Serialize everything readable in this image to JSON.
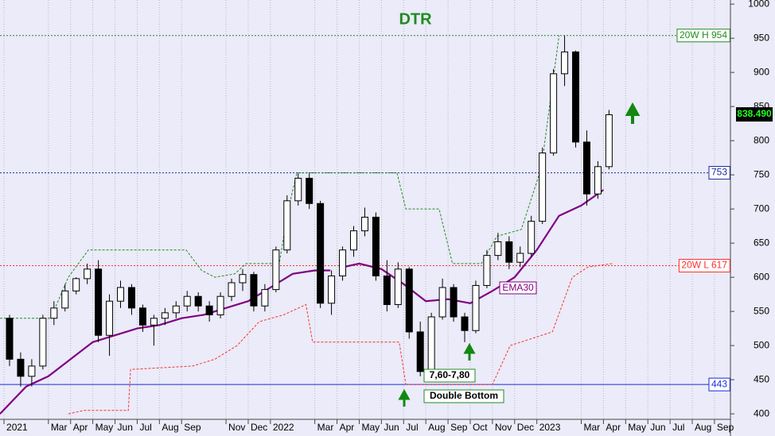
{
  "chart_data": {
    "type": "candlestick",
    "title": "DTR",
    "xlim": [
      -0.18,
      32.72
    ],
    "xticks": [
      {
        "value": 0,
        "label": "2021"
      },
      {
        "value": 2,
        "label": "Mar"
      },
      {
        "value": 3,
        "label": "Apr"
      },
      {
        "value": 4,
        "label": "May"
      },
      {
        "value": 5,
        "label": "Jun"
      },
      {
        "value": 6,
        "label": "Jul"
      },
      {
        "value": 7,
        "label": "Aug"
      },
      {
        "value": 8,
        "label": "Sep"
      },
      {
        "value": 10,
        "label": "Nov"
      },
      {
        "value": 11,
        "label": "Dec"
      },
      {
        "value": 12,
        "label": "2022"
      },
      {
        "value": 14,
        "label": "Mar"
      },
      {
        "value": 15,
        "label": "Apr"
      },
      {
        "value": 16,
        "label": "May"
      },
      {
        "value": 17,
        "label": "Jun"
      },
      {
        "value": 18,
        "label": "Jul"
      },
      {
        "value": 19,
        "label": "Aug"
      },
      {
        "value": 20,
        "label": "Sep"
      },
      {
        "value": 21,
        "label": "Oct"
      },
      {
        "value": 22,
        "label": "Nov"
      },
      {
        "value": 23,
        "label": "Dec"
      },
      {
        "value": 24,
        "label": "2023"
      },
      {
        "value": 26,
        "label": "Mar"
      },
      {
        "value": 27,
        "label": "Apr"
      },
      {
        "value": 28,
        "label": "May"
      },
      {
        "value": 29,
        "label": "Jun"
      },
      {
        "value": 30,
        "label": "Jul"
      },
      {
        "value": 31,
        "label": "Aug"
      },
      {
        "value": 32,
        "label": "Sep"
      }
    ],
    "ylim": [
      392,
      1006
    ],
    "yticks": [
      400,
      450,
      500,
      550,
      600,
      650,
      700,
      750,
      800,
      850,
      900,
      950,
      1000
    ],
    "grid": true,
    "x": [
      0.25,
      0.75,
      1.25,
      1.75,
      2.25,
      2.75,
      3.25,
      3.75,
      4.25,
      4.75,
      5.25,
      5.75,
      6.25,
      6.75,
      7.25,
      7.75,
      8.25,
      8.75,
      9.25,
      9.75,
      10.25,
      10.75,
      11.25,
      11.75,
      12.25,
      12.75,
      13.25,
      13.75,
      14.25,
      14.75,
      15.25,
      15.75,
      16.25,
      16.75,
      17.25,
      17.75,
      18.25,
      18.75,
      19.25,
      19.75,
      20.25,
      20.75,
      21.25,
      21.75,
      22.25,
      22.75,
      23.25,
      23.75,
      24.25,
      24.75,
      25.25,
      25.75,
      26.25,
      26.75,
      27.25
    ],
    "open": [
      540,
      480,
      455,
      470,
      540,
      555,
      580,
      598,
      612,
      515,
      565,
      585,
      555,
      530,
      540,
      548,
      558,
      572,
      558,
      545,
      572,
      592,
      604,
      558,
      582,
      640,
      712,
      745,
      708,
      562,
      602,
      640,
      668,
      688,
      602,
      560,
      612,
      520,
      462,
      542,
      585,
      542,
      522,
      588,
      632,
      652,
      622,
      635,
      682,
      782,
      898,
      930,
      798,
      722,
      762
    ],
    "high": [
      545,
      490,
      480,
      545,
      565,
      590,
      600,
      620,
      625,
      575,
      595,
      590,
      560,
      545,
      555,
      565,
      580,
      578,
      565,
      578,
      598,
      612,
      608,
      590,
      645,
      720,
      752,
      752,
      712,
      610,
      645,
      675,
      702,
      695,
      625,
      622,
      615,
      535,
      548,
      598,
      590,
      548,
      595,
      640,
      665,
      660,
      645,
      690,
      790,
      905,
      954,
      932,
      815,
      770,
      845
    ],
    "low": [
      470,
      440,
      440,
      465,
      530,
      550,
      575,
      590,
      505,
      485,
      555,
      545,
      520,
      500,
      530,
      540,
      550,
      550,
      535,
      540,
      565,
      580,
      550,
      550,
      578,
      635,
      705,
      700,
      555,
      545,
      595,
      630,
      660,
      595,
      550,
      555,
      510,
      455,
      458,
      538,
      535,
      505,
      518,
      584,
      625,
      612,
      615,
      630,
      678,
      778,
      880,
      790,
      705,
      715,
      758
    ],
    "close": [
      480,
      455,
      470,
      540,
      555,
      580,
      598,
      612,
      515,
      565,
      585,
      555,
      530,
      540,
      548,
      558,
      572,
      558,
      545,
      572,
      592,
      604,
      558,
      582,
      640,
      712,
      745,
      708,
      562,
      602,
      640,
      668,
      688,
      602,
      560,
      612,
      520,
      462,
      542,
      585,
      542,
      522,
      588,
      632,
      652,
      622,
      635,
      682,
      782,
      898,
      930,
      798,
      722,
      762,
      838
    ],
    "series": [
      {
        "name": "EMA30",
        "color": "#800080",
        "x": [
          -0.18,
          1,
          2,
          3,
          4,
          5,
          6,
          7,
          8,
          9,
          10,
          11,
          12,
          13,
          14,
          14.7,
          15,
          15.3,
          16,
          17,
          18,
          19,
          20,
          21,
          22,
          23,
          24,
          25,
          26,
          27
        ],
        "values": [
          400,
          440,
          455,
          480,
          505,
          515,
          525,
          530,
          540,
          545,
          555,
          565,
          585,
          605,
          610,
          610,
          null,
          615,
          620,
          612,
          590,
          565,
          568,
          562,
          580,
          600,
          640,
          690,
          705,
          728
        ]
      },
      {
        "name": "20W H",
        "color": "#228b22",
        "x": [
          -0.18,
          2.1,
          2.9,
          3.8,
          8.2,
          8.9,
          9.5,
          10.4,
          10.9,
          12.4,
          12.8,
          13.2,
          17.7,
          18.1,
          19.6,
          20.2,
          21.5,
          22.2,
          23.3,
          24.2,
          25.0
        ],
        "values": [
          540,
          540,
          600,
          640,
          640,
          610,
          600,
          605,
          620,
          620,
          700,
          753,
          753,
          700,
          700,
          620,
          620,
          660,
          670,
          760,
          954
        ]
      },
      {
        "name": "20W L",
        "color": "#ff3030",
        "x": [
          2.9,
          3.6,
          5.6,
          5.7,
          8.5,
          9.5,
          10.5,
          11.5,
          12.6,
          13.6,
          13.9,
          16.1,
          17.8,
          18.1,
          22.0,
          22.8,
          24.7,
          25.6,
          26.3,
          27.4
        ],
        "values": [
          400,
          405,
          405,
          465,
          470,
          480,
          500,
          535,
          545,
          560,
          505,
          505,
          505,
          443,
          443,
          500,
          520,
          600,
          615,
          620
        ]
      }
    ],
    "levels": [
      {
        "value": 954,
        "label": "20W H 954",
        "color": "#228b22"
      },
      {
        "value": 753,
        "label": "753",
        "color": "#1a2a9a"
      },
      {
        "value": 617,
        "label": "20W L 617",
        "color": "#ff3030"
      },
      {
        "value": 443,
        "label": "443",
        "color": "#1a2ae0"
      }
    ],
    "last_price": {
      "value": 838.49,
      "label": "838.490"
    },
    "annotations": [
      "EMA30",
      "7,60-7,80",
      "Double Bottom"
    ]
  }
}
